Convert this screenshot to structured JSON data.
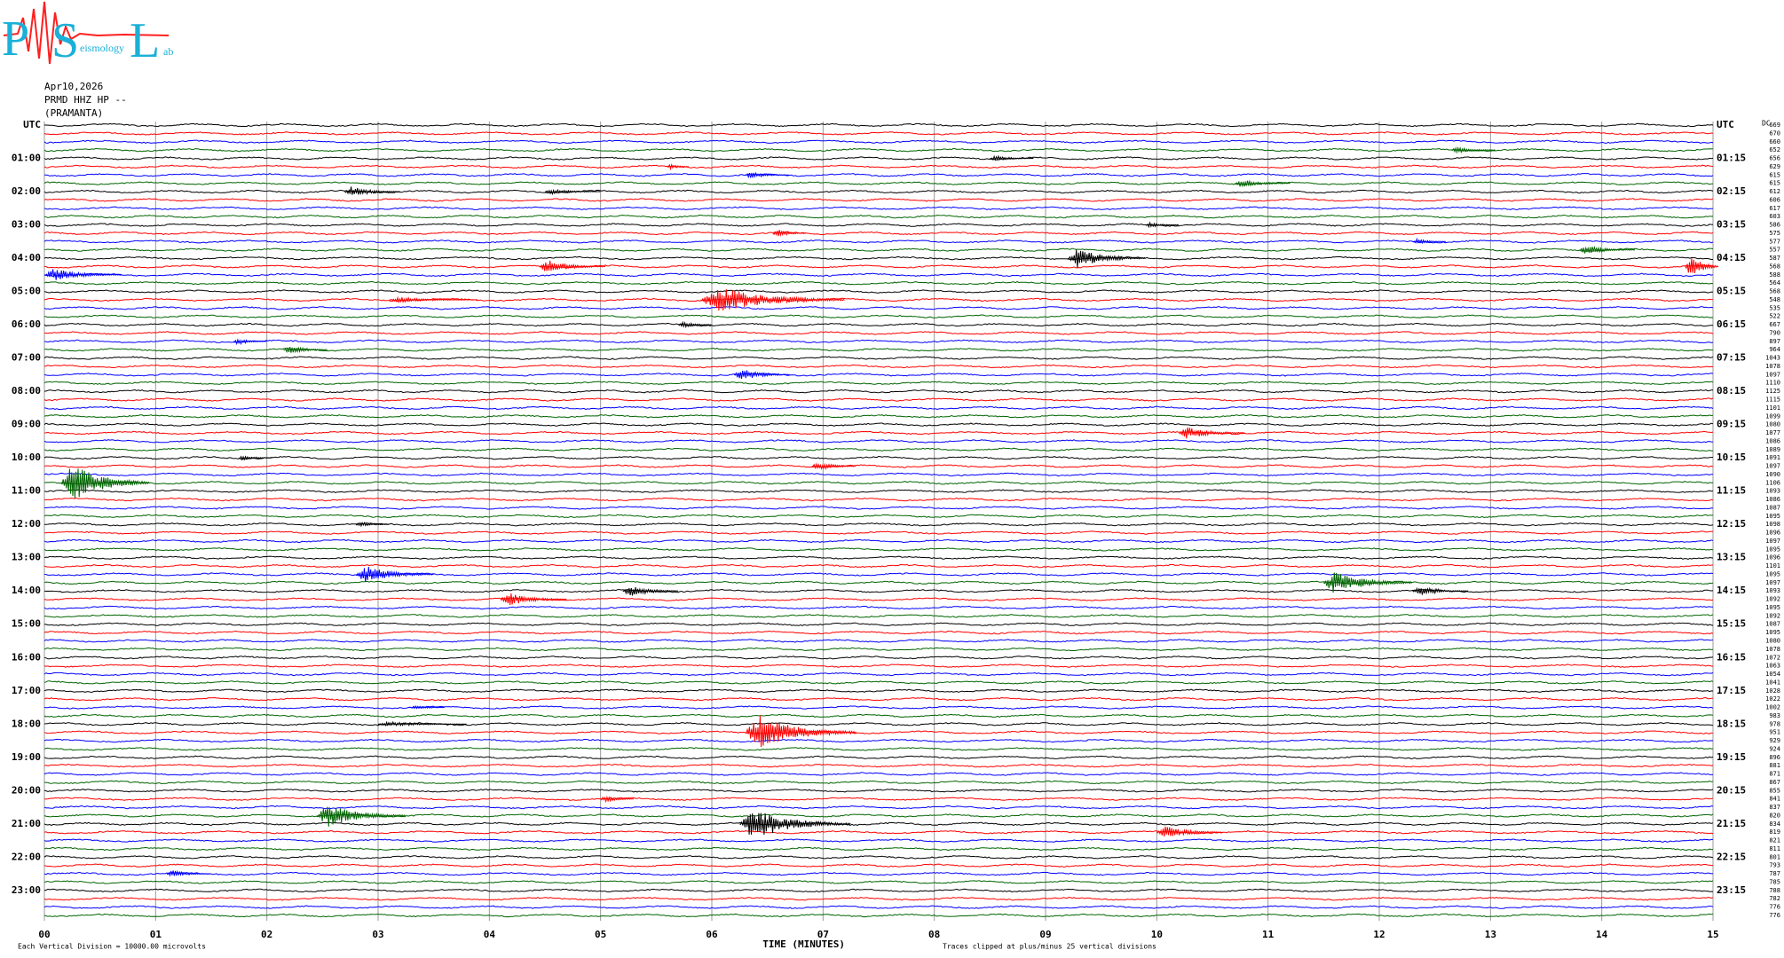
{
  "logo": {
    "p": "P",
    "s": "S",
    "l": "L",
    "seismology": "eismology",
    "lab": "ab"
  },
  "header": {
    "date": "Apr10,2026",
    "station": "PRMD HHZ HP --",
    "name": "(PRAMANTA)"
  },
  "left_labels": [
    "UTC",
    "01:00",
    "02:00",
    "03:00",
    "04:00",
    "05:00",
    "06:00",
    "07:00",
    "08:00",
    "09:00",
    "10:00",
    "11:00",
    "12:00",
    "13:00",
    "14:00",
    "15:00",
    "16:00",
    "17:00",
    "18:00",
    "19:00",
    "20:00",
    "21:00",
    "22:00",
    "23:00"
  ],
  "right_labels": [
    "UTC",
    "01:15",
    "02:15",
    "03:15",
    "04:15",
    "05:15",
    "06:15",
    "07:15",
    "08:15",
    "09:15",
    "10:15",
    "11:15",
    "12:15",
    "13:15",
    "14:15",
    "15:15",
    "16:15",
    "17:15",
    "18:15",
    "19:15",
    "20:15",
    "21:15",
    "22:15",
    "23:15"
  ],
  "x_axis": {
    "ticks": [
      "00",
      "01",
      "02",
      "03",
      "04",
      "05",
      "06",
      "07",
      "08",
      "09",
      "10",
      "11",
      "12",
      "13",
      "14",
      "15"
    ],
    "title": "TIME (MINUTES)"
  },
  "footer": {
    "scale": "Each Vertical Division = 10000.00 microvolts",
    "clip": "Traces clipped at plus/minus 25 vertical divisions"
  },
  "dc_label": "DC",
  "offsets": [
    669,
    670,
    660,
    652,
    656,
    629,
    615,
    615,
    612,
    606,
    617,
    603,
    586,
    575,
    577,
    557,
    587,
    568,
    588,
    564,
    568,
    548,
    535,
    522,
    667,
    790,
    897,
    964,
    1043,
    1078,
    1097,
    1110,
    1125,
    1115,
    1101,
    1099,
    1080,
    1077,
    1086,
    1089,
    1091,
    1097,
    1090,
    1106,
    1093,
    1086,
    1087,
    1095,
    1098,
    1096,
    1097,
    1095,
    1096,
    1101,
    1095,
    1097,
    1093,
    1092,
    1095,
    1092,
    1087,
    1095,
    1080,
    1078,
    1072,
    1063,
    1054,
    1041,
    1028,
    1022,
    1002,
    983,
    978,
    951,
    929,
    924,
    896,
    881,
    871,
    867,
    855,
    841,
    837,
    820,
    834,
    819,
    821,
    811,
    801,
    793,
    787,
    785,
    788,
    782,
    776,
    776
  ],
  "trace_colors": [
    "#000000",
    "#ff0000",
    "#0000ff",
    "#006400"
  ],
  "events": [
    {
      "row": 3,
      "minute": 12.65,
      "duration": 0.4,
      "amplitude": 4
    },
    {
      "row": 4,
      "minute": 8.5,
      "duration": 0.4,
      "amplitude": 3
    },
    {
      "row": 5,
      "minute": 5.6,
      "duration": 0.2,
      "amplitude": 3
    },
    {
      "row": 6,
      "minute": 6.3,
      "duration": 0.4,
      "amplitude": 4
    },
    {
      "row": 7,
      "minute": 10.7,
      "duration": 0.5,
      "amplitude": 5
    },
    {
      "row": 8,
      "minute": 2.7,
      "duration": 0.5,
      "amplitude": 6
    },
    {
      "row": 8,
      "minute": 4.5,
      "duration": 0.5,
      "amplitude": 3
    },
    {
      "row": 12,
      "minute": 9.9,
      "duration": 0.3,
      "amplitude": 3
    },
    {
      "row": 13,
      "minute": 6.55,
      "duration": 0.3,
      "amplitude": 5
    },
    {
      "row": 14,
      "minute": 12.3,
      "duration": 0.3,
      "amplitude": 3
    },
    {
      "row": 15,
      "minute": 13.8,
      "duration": 0.5,
      "amplitude": 5
    },
    {
      "row": 16,
      "minute": 9.2,
      "duration": 0.7,
      "amplitude": 11
    },
    {
      "row": 17,
      "minute": 4.45,
      "duration": 0.6,
      "amplitude": 8
    },
    {
      "row": 17,
      "minute": 14.75,
      "duration": 0.3,
      "amplitude": 15
    },
    {
      "row": 18,
      "minute": 0.0,
      "duration": 0.7,
      "amplitude": 7
    },
    {
      "row": 21,
      "minute": 5.9,
      "duration": 1.3,
      "amplitude": 15
    },
    {
      "row": 21,
      "minute": 3.1,
      "duration": 0.8,
      "amplitude": 3
    },
    {
      "row": 24,
      "minute": 5.7,
      "duration": 0.3,
      "amplitude": 4
    },
    {
      "row": 26,
      "minute": 1.7,
      "duration": 0.3,
      "amplitude": 4
    },
    {
      "row": 27,
      "minute": 2.15,
      "duration": 0.4,
      "amplitude": 5
    },
    {
      "row": 30,
      "minute": 6.2,
      "duration": 0.5,
      "amplitude": 7
    },
    {
      "row": 37,
      "minute": 10.2,
      "duration": 0.6,
      "amplitude": 7
    },
    {
      "row": 40,
      "minute": 1.75,
      "duration": 0.3,
      "amplitude": 3
    },
    {
      "row": 41,
      "minute": 6.9,
      "duration": 0.4,
      "amplitude": 5
    },
    {
      "row": 43,
      "minute": 0.15,
      "duration": 0.8,
      "amplitude": 22
    },
    {
      "row": 48,
      "minute": 2.8,
      "duration": 0.3,
      "amplitude": 3
    },
    {
      "row": 54,
      "minute": 2.8,
      "duration": 0.7,
      "amplitude": 10
    },
    {
      "row": 55,
      "minute": 11.5,
      "duration": 0.8,
      "amplitude": 13
    },
    {
      "row": 56,
      "minute": 5.2,
      "duration": 0.5,
      "amplitude": 7
    },
    {
      "row": 56,
      "minute": 12.3,
      "duration": 0.5,
      "amplitude": 6
    },
    {
      "row": 57,
      "minute": 4.1,
      "duration": 0.6,
      "amplitude": 8
    },
    {
      "row": 70,
      "minute": 3.3,
      "duration": 0.3,
      "amplitude": 3
    },
    {
      "row": 72,
      "minute": 3.0,
      "duration": 0.8,
      "amplitude": 3
    },
    {
      "row": 73,
      "minute": 6.3,
      "duration": 1.0,
      "amplitude": 20
    },
    {
      "row": 81,
      "minute": 5.0,
      "duration": 0.3,
      "amplitude": 4
    },
    {
      "row": 83,
      "minute": 2.45,
      "duration": 0.8,
      "amplitude": 13
    },
    {
      "row": 84,
      "minute": 6.25,
      "duration": 1.0,
      "amplitude": 18
    },
    {
      "row": 85,
      "minute": 10.0,
      "duration": 0.6,
      "amplitude": 7
    },
    {
      "row": 90,
      "minute": 1.1,
      "duration": 0.4,
      "amplitude": 4
    }
  ]
}
